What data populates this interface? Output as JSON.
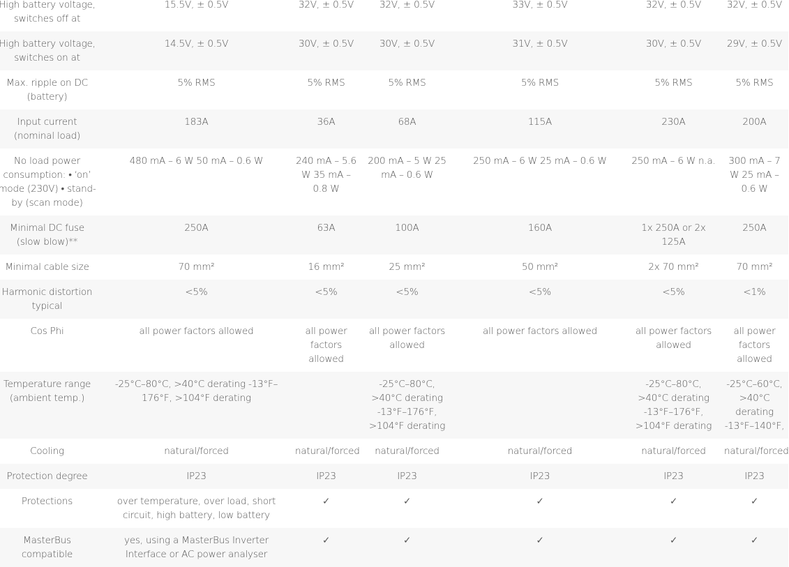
{
  "rows": [
    {
      "label": "High battery voltage, switches off at",
      "values": [
        "15.5V, ± 0.5V",
        "32V, ± 0.5V",
        "32V, ± 0.5V",
        "33V, ± 0.5V",
        "32V, ± 0.5V",
        "32V, ± 0.5V"
      ]
    },
    {
      "label": "High battery voltage, switches on at",
      "values": [
        "14.5V, ± 0.5V",
        "30V, ± 0.5V",
        "30V, ± 0.5V",
        "31V, ± 0.5V",
        "30V, ± 0.5V",
        "29V, ± 0.5V"
      ]
    },
    {
      "label": "Max. ripple on DC (battery)",
      "values": [
        "5% RMS",
        "5% RMS",
        "5% RMS",
        "5% RMS",
        "5% RMS",
        "5% RMS"
      ]
    },
    {
      "label": "Input current (nominal load)",
      "values": [
        "183A",
        "36A",
        "68A",
        "115A",
        "230A",
        "200A"
      ]
    },
    {
      "label": "No load power consumption: • ‘on’ mode (230V) • stand-by (scan mode)",
      "values": [
        "480 mA – 6 W 50 mA – 0.6 W",
        "240 mA – 5.6 W 35 mA – 0.8 W",
        "200 mA – 5 W 25 mA – 0.6 W",
        "250 mA – 6 W 25 mA – 0.6 W",
        "250 mA – 6 W n.a.",
        "300 mA – 7 W 25 mA – 0.6 W"
      ]
    },
    {
      "label": "Minimal DC fuse (slow blow)**",
      "values": [
        "250A",
        "63A",
        "100A",
        "160A",
        "1x 250A or 2x 125A",
        "250A"
      ]
    },
    {
      "label": "Minimal cable size",
      "values": [
        "70 mm²",
        "16 mm²",
        "25 mm²",
        "50 mm²",
        "2x 70 mm²",
        "70 mm²"
      ]
    },
    {
      "label": "Harmonic distortion typical",
      "values": [
        "<5%",
        "<5%",
        "<5%",
        "<5%",
        "<5%",
        "<1%"
      ]
    },
    {
      "label": "Cos Phi",
      "values": [
        "all power factors allowed",
        "all power factors allowed",
        "all power factors allowed",
        "all power factors allowed",
        "all power factors allowed",
        "all power factors allowed"
      ]
    },
    {
      "label": "Temperature range (ambient temp.)",
      "values": [
        "-25°C–80°C, >40°C derating -13°F–176°F, >104°F derating",
        "",
        "-25°C–80°C, >40°C derating -13°F–176°F, >104°F derating",
        "",
        "-25°C–80°C, >40°C derating -13°F–176°F, >104°F derating",
        "-25°C–60°C, >40°C derating -13°F–140°F,"
      ]
    },
    {
      "label": "Cooling",
      "values": [
        "natural/forced",
        "natural/forced",
        "natural/forced",
        "natural/forced",
        "natural/forced",
        "natural/forced"
      ]
    },
    {
      "label": "Protection degree",
      "values": [
        "IP23",
        "IP23",
        "IP23",
        "IP23",
        "IP23",
        "IP23"
      ]
    },
    {
      "label": "Protections",
      "values": [
        "over temperature, over load, short circuit, high battery, low battery",
        "✓",
        "✓",
        "✓",
        "✓",
        "✓"
      ]
    },
    {
      "label": "MasterBus compatible",
      "values": [
        "yes, using a MasterBus Inverter Interface or AC power analyser",
        "✓",
        "✓",
        "✓",
        "✓",
        "✓"
      ]
    }
  ]
}
